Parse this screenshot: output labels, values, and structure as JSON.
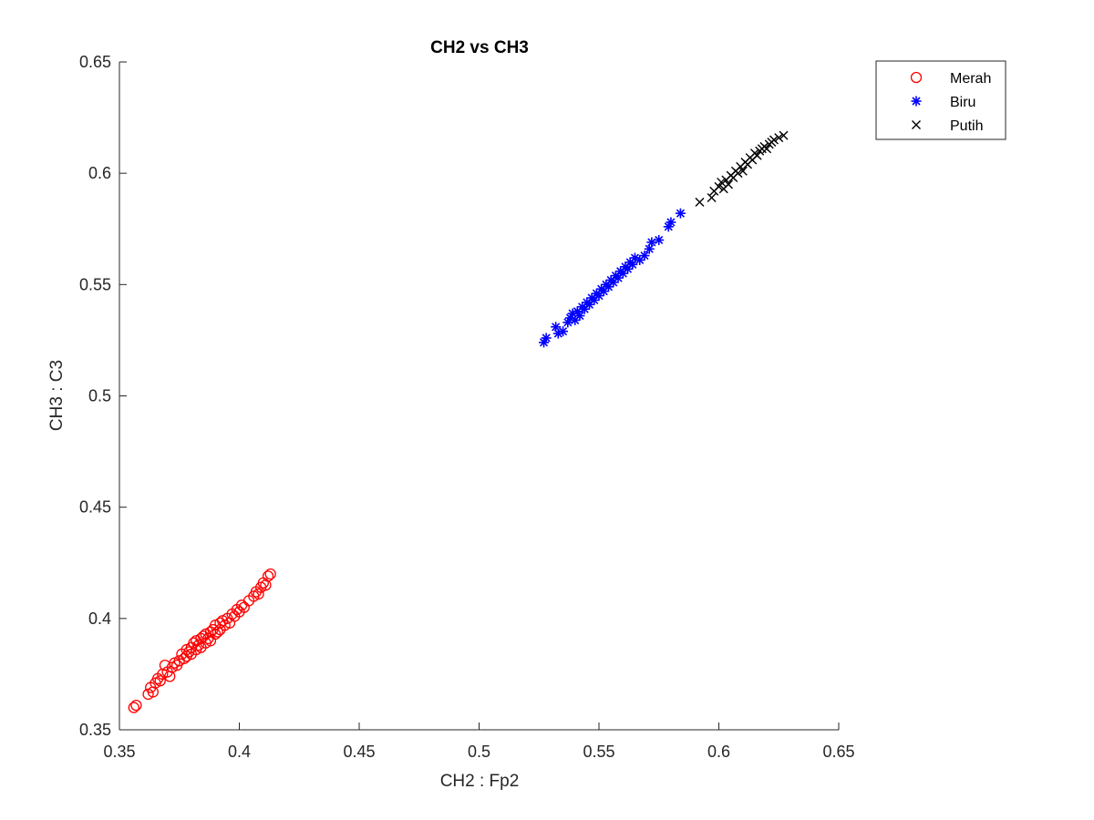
{
  "chart_data": {
    "type": "scatter",
    "title": "CH2 vs CH3",
    "xlabel": "CH2 : Fp2",
    "ylabel": "CH3 : C3",
    "xlim": [
      0.35,
      0.65
    ],
    "ylim": [
      0.35,
      0.65
    ],
    "xticks": [
      "0.35",
      "0.4",
      "0.45",
      "0.5",
      "0.55",
      "0.6",
      "0.65"
    ],
    "yticks": [
      "0.35",
      "0.4",
      "0.45",
      "0.5",
      "0.55",
      "0.6",
      "0.65"
    ],
    "grid": false,
    "legend_position": "top-right outside",
    "series": [
      {
        "name": "Merah",
        "marker": "circle",
        "color": "#ff0000",
        "points": [
          [
            0.356,
            0.36
          ],
          [
            0.357,
            0.361
          ],
          [
            0.362,
            0.366
          ],
          [
            0.363,
            0.369
          ],
          [
            0.364,
            0.367
          ],
          [
            0.365,
            0.371
          ],
          [
            0.366,
            0.373
          ],
          [
            0.367,
            0.372
          ],
          [
            0.368,
            0.375
          ],
          [
            0.369,
            0.379
          ],
          [
            0.37,
            0.376
          ],
          [
            0.371,
            0.374
          ],
          [
            0.372,
            0.378
          ],
          [
            0.373,
            0.38
          ],
          [
            0.374,
            0.379
          ],
          [
            0.375,
            0.381
          ],
          [
            0.376,
            0.384
          ],
          [
            0.377,
            0.382
          ],
          [
            0.378,
            0.386
          ],
          [
            0.378,
            0.383
          ],
          [
            0.379,
            0.385
          ],
          [
            0.38,
            0.387
          ],
          [
            0.38,
            0.384
          ],
          [
            0.381,
            0.389
          ],
          [
            0.382,
            0.386
          ],
          [
            0.382,
            0.39
          ],
          [
            0.383,
            0.388
          ],
          [
            0.384,
            0.391
          ],
          [
            0.384,
            0.387
          ],
          [
            0.385,
            0.392
          ],
          [
            0.386,
            0.389
          ],
          [
            0.386,
            0.393
          ],
          [
            0.387,
            0.391
          ],
          [
            0.388,
            0.394
          ],
          [
            0.388,
            0.39
          ],
          [
            0.389,
            0.395
          ],
          [
            0.39,
            0.393
          ],
          [
            0.39,
            0.397
          ],
          [
            0.391,
            0.394
          ],
          [
            0.392,
            0.398
          ],
          [
            0.392,
            0.395
          ],
          [
            0.393,
            0.399
          ],
          [
            0.394,
            0.397
          ],
          [
            0.395,
            0.4
          ],
          [
            0.396,
            0.398
          ],
          [
            0.397,
            0.402
          ],
          [
            0.398,
            0.401
          ],
          [
            0.399,
            0.404
          ],
          [
            0.4,
            0.403
          ],
          [
            0.401,
            0.406
          ],
          [
            0.402,
            0.405
          ],
          [
            0.404,
            0.408
          ],
          [
            0.406,
            0.41
          ],
          [
            0.407,
            0.412
          ],
          [
            0.408,
            0.411
          ],
          [
            0.409,
            0.414
          ],
          [
            0.41,
            0.416
          ],
          [
            0.411,
            0.415
          ],
          [
            0.412,
            0.419
          ],
          [
            0.413,
            0.42
          ]
        ]
      },
      {
        "name": "Biru",
        "marker": "asterisk",
        "color": "#0000ff",
        "points": [
          [
            0.527,
            0.524
          ],
          [
            0.528,
            0.526
          ],
          [
            0.532,
            0.531
          ],
          [
            0.533,
            0.528
          ],
          [
            0.535,
            0.529
          ],
          [
            0.537,
            0.533
          ],
          [
            0.538,
            0.535
          ],
          [
            0.539,
            0.537
          ],
          [
            0.54,
            0.534
          ],
          [
            0.541,
            0.538
          ],
          [
            0.542,
            0.536
          ],
          [
            0.543,
            0.54
          ],
          [
            0.544,
            0.539
          ],
          [
            0.545,
            0.542
          ],
          [
            0.546,
            0.541
          ],
          [
            0.547,
            0.544
          ],
          [
            0.548,
            0.543
          ],
          [
            0.549,
            0.546
          ],
          [
            0.55,
            0.545
          ],
          [
            0.551,
            0.548
          ],
          [
            0.552,
            0.547
          ],
          [
            0.553,
            0.55
          ],
          [
            0.554,
            0.549
          ],
          [
            0.555,
            0.552
          ],
          [
            0.556,
            0.551
          ],
          [
            0.557,
            0.554
          ],
          [
            0.558,
            0.553
          ],
          [
            0.559,
            0.556
          ],
          [
            0.56,
            0.555
          ],
          [
            0.561,
            0.558
          ],
          [
            0.562,
            0.557
          ],
          [
            0.563,
            0.56
          ],
          [
            0.564,
            0.559
          ],
          [
            0.565,
            0.562
          ],
          [
            0.567,
            0.561
          ],
          [
            0.569,
            0.563
          ],
          [
            0.571,
            0.566
          ],
          [
            0.572,
            0.569
          ],
          [
            0.575,
            0.57
          ],
          [
            0.579,
            0.576
          ],
          [
            0.58,
            0.578
          ],
          [
            0.584,
            0.582
          ]
        ]
      },
      {
        "name": "Putih",
        "marker": "x",
        "color": "#000000",
        "points": [
          [
            0.592,
            0.587
          ],
          [
            0.597,
            0.589
          ],
          [
            0.598,
            0.592
          ],
          [
            0.6,
            0.594
          ],
          [
            0.601,
            0.596
          ],
          [
            0.602,
            0.593
          ],
          [
            0.603,
            0.597
          ],
          [
            0.604,
            0.595
          ],
          [
            0.605,
            0.599
          ],
          [
            0.606,
            0.598
          ],
          [
            0.607,
            0.601
          ],
          [
            0.608,
            0.6
          ],
          [
            0.609,
            0.603
          ],
          [
            0.61,
            0.601
          ],
          [
            0.611,
            0.605
          ],
          [
            0.612,
            0.604
          ],
          [
            0.613,
            0.607
          ],
          [
            0.614,
            0.606
          ],
          [
            0.615,
            0.609
          ],
          [
            0.616,
            0.608
          ],
          [
            0.617,
            0.61
          ],
          [
            0.618,
            0.611
          ],
          [
            0.619,
            0.612
          ],
          [
            0.62,
            0.611
          ],
          [
            0.621,
            0.613
          ],
          [
            0.622,
            0.614
          ],
          [
            0.623,
            0.615
          ],
          [
            0.625,
            0.616
          ],
          [
            0.627,
            0.617
          ]
        ]
      }
    ]
  }
}
